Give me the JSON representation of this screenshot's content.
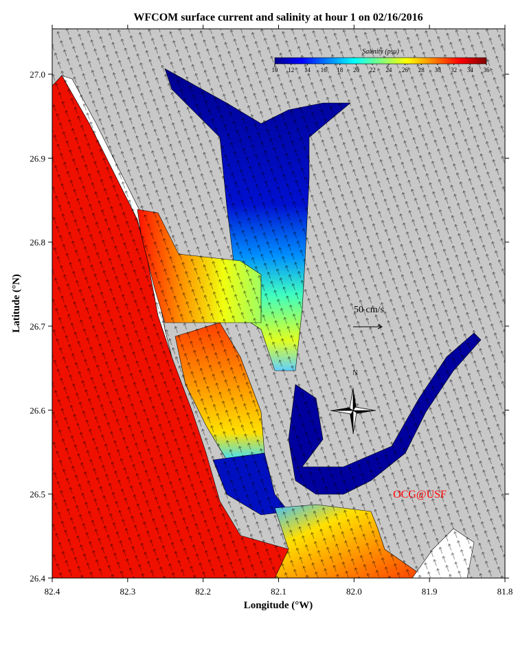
{
  "chart_data": {
    "type": "map",
    "title": "WFCOM surface current and salinity at hour 1 on 02/16/2016",
    "xlabel": "Longitude (°W)",
    "ylabel": "Latitude (°N)",
    "xlim": [
      82.4,
      81.8
    ],
    "ylim": [
      26.4,
      27.054
    ],
    "xticks": [
      82.4,
      82.3,
      82.2,
      82.1,
      {
        "value": 82,
        "label": "82.0"
      },
      81.9,
      81.8
    ],
    "yticks": [
      26.4,
      26.5,
      26.6,
      26.7,
      26.8,
      26.9,
      {
        "value": 27,
        "label": "27.0"
      }
    ],
    "colorbar": {
      "label": "Salinity (psu)",
      "lim": [
        10,
        36
      ],
      "ticks": [
        10,
        12,
        14,
        16,
        18,
        20,
        22,
        24,
        26,
        28,
        30,
        32,
        34,
        36
      ],
      "colors": [
        "#00008f",
        "#0000ff",
        "#0080ff",
        "#00ffff",
        "#80ff80",
        "#ffff00",
        "#ff8000",
        "#ff0000",
        "#800000"
      ]
    },
    "scale_label": "50 cm/s",
    "north_label": "N",
    "credit": "OCG@USF"
  }
}
